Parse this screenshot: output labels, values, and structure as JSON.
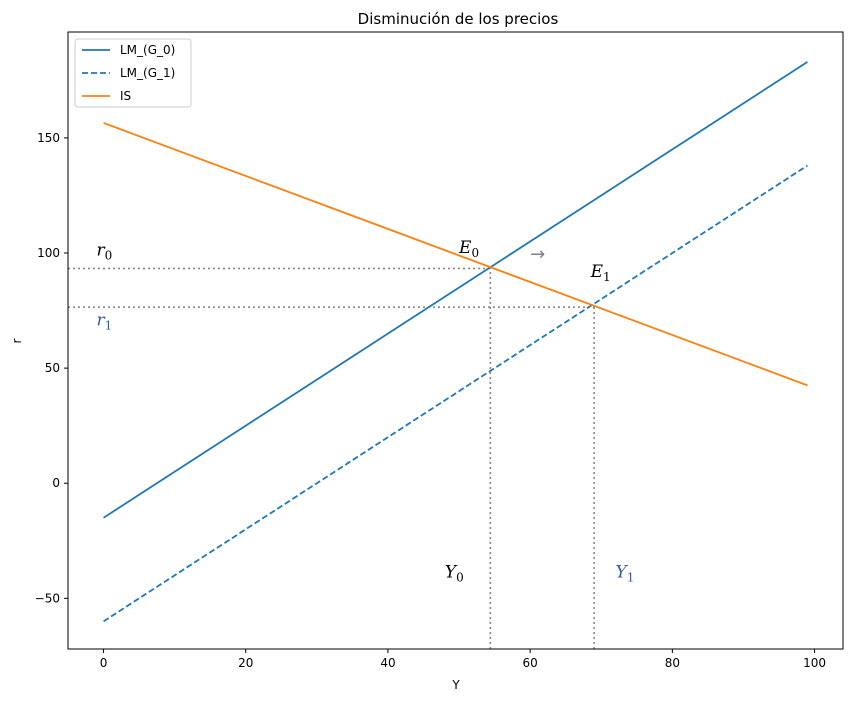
{
  "chart_data": {
    "type": "line",
    "title": "Disminución de los precios",
    "xlabel": "Y",
    "ylabel": "r",
    "xlim": [
      -5,
      104
    ],
    "ylim": [
      -72,
      196
    ],
    "xticks": [
      0,
      20,
      40,
      60,
      80,
      100
    ],
    "yticks": [
      -50,
      0,
      50,
      100,
      150
    ],
    "grid": false,
    "legend": "top-left",
    "series": [
      {
        "name": "LM_(G_0)",
        "x": [
          0,
          99
        ],
        "y": [
          -15,
          183
        ],
        "color": "#1f77b4",
        "dash": "solid"
      },
      {
        "name": "LM_(G_1)",
        "x": [
          0,
          99
        ],
        "y": [
          -60,
          138
        ],
        "color": "#1f77b4",
        "dash": "dashed"
      },
      {
        "name": "IS",
        "x": [
          0,
          99
        ],
        "y": [
          156.5,
          42.5
        ],
        "color": "#ff7f0e",
        "dash": "solid"
      }
    ],
    "reference_lines": [
      {
        "orientation": "h",
        "value": 93.3,
        "xmax": 54.4,
        "color": "#808080",
        "style": "dotted"
      },
      {
        "orientation": "h",
        "value": 76.5,
        "xmax": 69.0,
        "color": "#808080",
        "style": "dotted"
      },
      {
        "orientation": "v",
        "value": 54.4,
        "ymax": 93.3,
        "color": "#808080",
        "style": "dotted"
      },
      {
        "orientation": "v",
        "value": 69.0,
        "ymax": 76.5,
        "color": "#808080",
        "style": "dotted"
      }
    ],
    "annotations": [
      {
        "id": "r0",
        "main": "r",
        "sub": "0",
        "x": -1,
        "y": 99,
        "color": "#000000"
      },
      {
        "id": "r1",
        "main": "r",
        "sub": "1",
        "x": -1,
        "y": 68.5,
        "color": "#3d5a9e"
      },
      {
        "id": "E0",
        "main": "E",
        "sub": "0",
        "x": 50,
        "y": 100,
        "color": "#000000"
      },
      {
        "id": "E1",
        "main": "E",
        "sub": "1",
        "x": 68.5,
        "y": 89.5,
        "color": "#000000"
      },
      {
        "id": "Y0",
        "main": "Y",
        "sub": "0",
        "x": 48,
        "y": -41,
        "color": "#000000"
      },
      {
        "id": "Y1",
        "main": "Y",
        "sub": "1",
        "x": 72,
        "y": -41,
        "color": "#3d5a9e"
      },
      {
        "id": "arrow",
        "main": "→",
        "sub": "",
        "x": 60,
        "y": 97,
        "color": "#808080"
      }
    ]
  }
}
